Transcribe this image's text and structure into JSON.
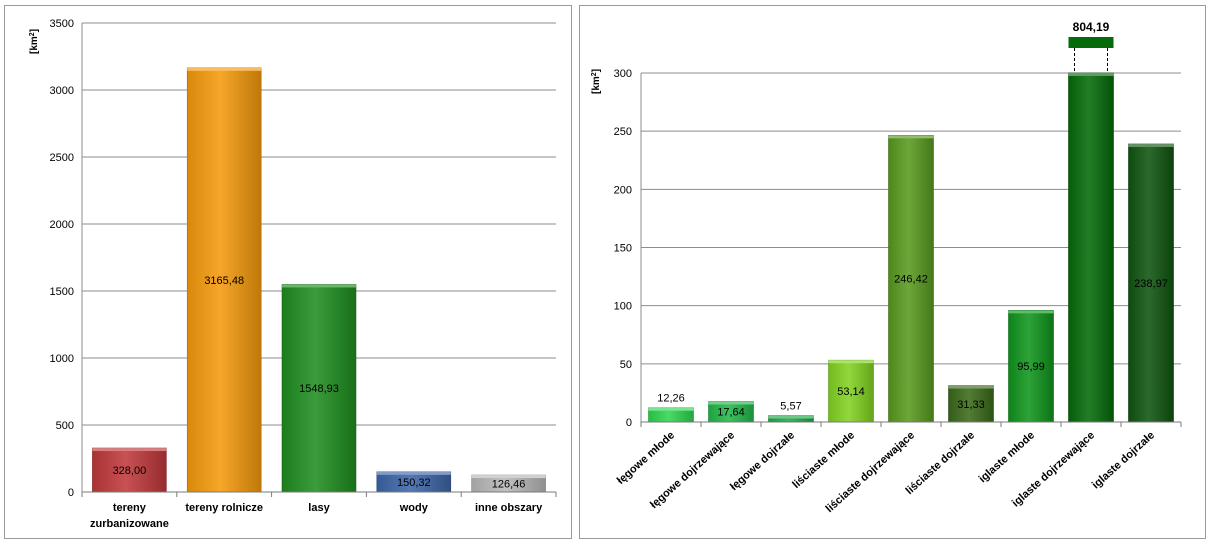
{
  "chart_data": [
    {
      "type": "bar",
      "title": "",
      "ylabel": "[km²]",
      "xlabel": "",
      "ylim": [
        0,
        3500
      ],
      "yticks": [
        0,
        500,
        1000,
        1500,
        2000,
        2500,
        3000,
        3500
      ],
      "grid": true,
      "legend": "none",
      "categories": [
        "tereny zurbanizowane",
        "tereny rolnicze",
        "lasy",
        "wody",
        "inne obszary"
      ],
      "category_lines": [
        [
          "tereny",
          "zurbanizowane"
        ],
        [
          "tereny rolnicze"
        ],
        [
          "lasy"
        ],
        [
          "wody"
        ],
        [
          "inne obszary"
        ]
      ],
      "values": [
        328.0,
        3165.48,
        1548.93,
        150.32,
        126.46
      ],
      "value_labels": [
        "328,00",
        "3165,48",
        "1548,93",
        "150,32",
        "126,46"
      ],
      "colors": [
        "#c0393c",
        "#f59a0c",
        "#1f8e1f",
        "#3d66a8",
        "#b8b8b8"
      ]
    },
    {
      "type": "bar",
      "title": "",
      "ylabel": "[km²]",
      "xlabel": "",
      "ylim": [
        0,
        300
      ],
      "yticks": [
        0,
        50,
        100,
        150,
        200,
        250,
        300
      ],
      "grid": true,
      "legend": "none",
      "axis_break": true,
      "categories": [
        "łęgowe młode",
        "łęgowe dojrzewające",
        "łęgowe dojrzałe",
        "liściaste młode",
        "liściaste dojrzewające",
        "liściaste dojrzałe",
        "iglaste młode",
        "iglaste dojrzewające",
        "iglaste dojrzałe"
      ],
      "values": [
        12.26,
        17.64,
        5.57,
        53.14,
        246.42,
        31.33,
        95.99,
        804.19,
        238.97
      ],
      "value_labels": [
        "12,26",
        "17,64",
        "5,57",
        "53,14",
        "246,42",
        "31,33",
        "95,99",
        "804,19",
        "238,97"
      ],
      "colors": [
        "#2fd650",
        "#22b84a",
        "#20a84a",
        "#82d321",
        "#599a1f",
        "#3b6a1a",
        "#10951d",
        "#056b0a",
        "#0f5510"
      ]
    }
  ]
}
